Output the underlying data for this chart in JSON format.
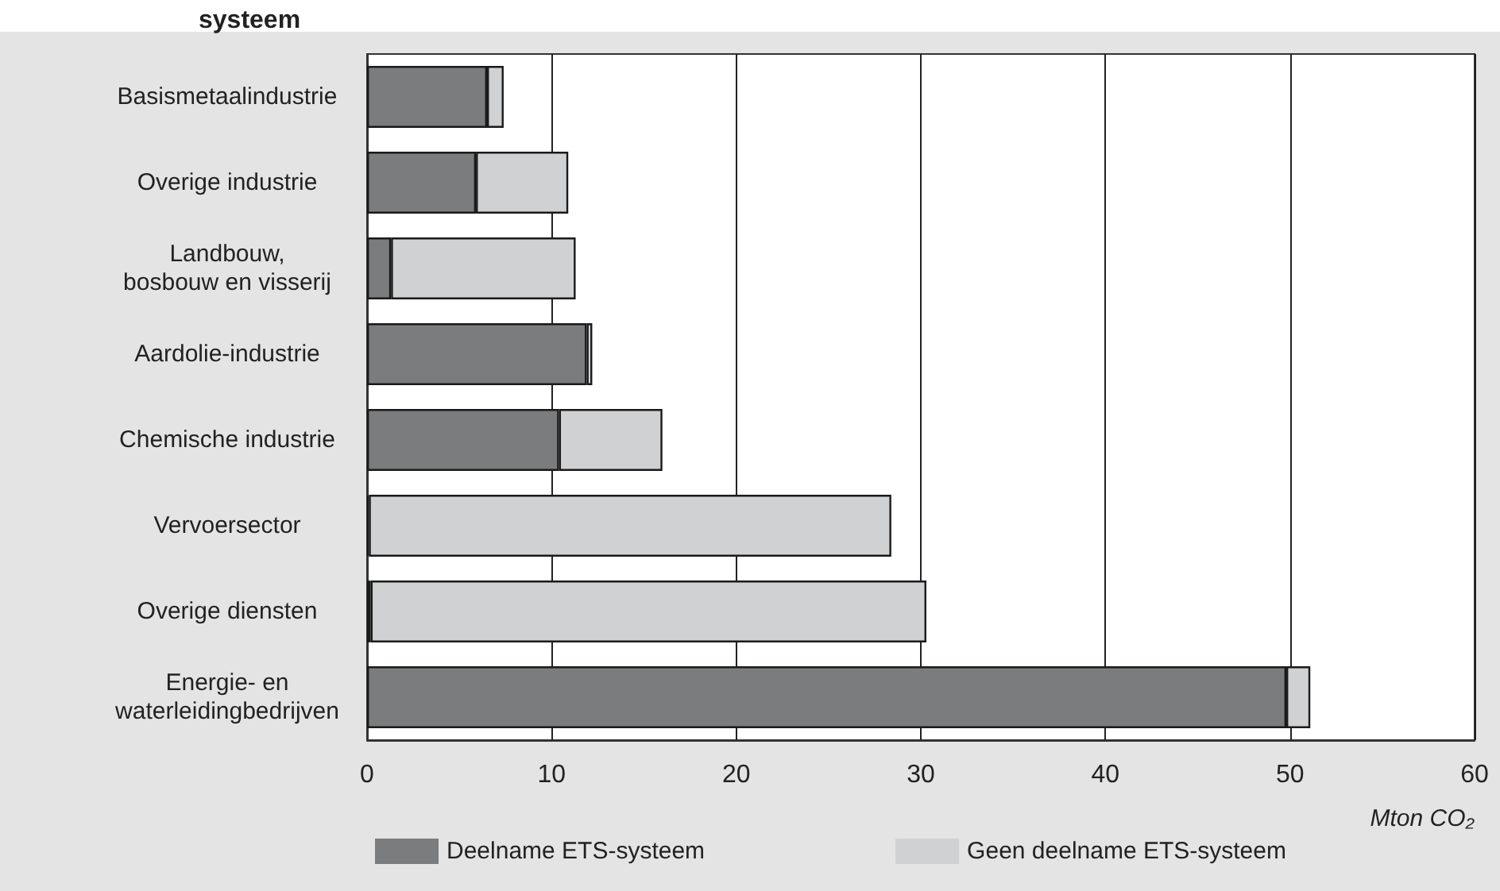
{
  "chart_data": {
    "type": "bar",
    "orientation": "horizontal",
    "stacked": true,
    "title": "systeem",
    "xlabel": "Mton CO₂",
    "categories": [
      "Basismetaalindustrie",
      "Overige industrie",
      "Landbouw,\nbosbouw en visserij",
      "Aardolie-industrie",
      "Chemische industrie",
      "Vervoersector",
      "Overige diensten",
      "Energie- en\nwaterleidingbedrijven"
    ],
    "series": [
      {
        "name": "Deelname ETS-systeem",
        "color": "#7b7c7d",
        "values": [
          6.5,
          5.9,
          1.3,
          11.9,
          10.4,
          0.1,
          0.2,
          49.8
        ]
      },
      {
        "name": "Geen deelname ETS-systeem",
        "color": "#d0d1d3",
        "values": [
          0.9,
          5.0,
          10.0,
          0.3,
          5.6,
          28.3,
          30.1,
          1.3
        ]
      }
    ],
    "xlim": [
      0,
      60
    ],
    "xticks": [
      0,
      10,
      20,
      30,
      40,
      50,
      60
    ],
    "grid": "x",
    "legend": "bottom"
  }
}
